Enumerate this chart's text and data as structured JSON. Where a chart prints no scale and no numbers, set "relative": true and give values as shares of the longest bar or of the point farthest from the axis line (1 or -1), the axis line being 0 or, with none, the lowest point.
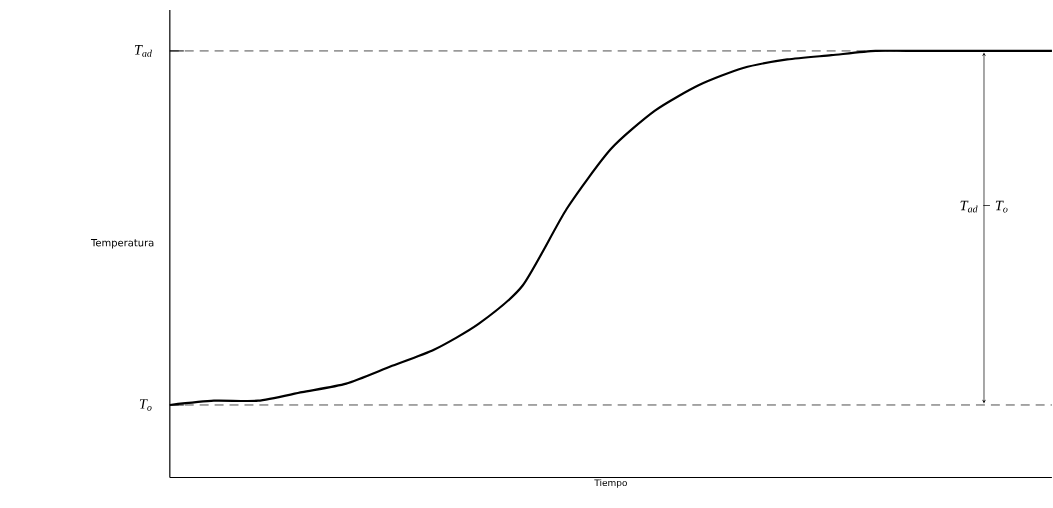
{
  "chart_data": {
    "type": "line",
    "relative": true,
    "xlabel": "Tiempo",
    "ylabel": "Temperatura",
    "color": "#000000",
    "categories": [
      null,
      null,
      null,
      null,
      null,
      null,
      null,
      null,
      null,
      null,
      null,
      null,
      null,
      null,
      null,
      null,
      null,
      null,
      null,
      null,
      null
    ],
    "values": [
      0.17,
      0.18,
      0.18,
      0.2,
      0.22,
      0.26,
      0.3,
      0.36,
      0.45,
      0.63,
      0.77,
      0.86,
      0.92,
      0.96,
      0.98,
      0.99,
      1,
      1,
      1,
      1,
      1
    ],
    "ref_lines": [
      {
        "axis": "y",
        "value": 0.17,
        "label": "T$_{o}$",
        "line_style": "dashed"
      },
      {
        "axis": "y",
        "value": 1,
        "label": "T$_{ad}$",
        "line_style": "dashed"
      }
    ],
    "annotations": [
      "T$_{ad}$ − T$_{o}$"
    ]
  }
}
